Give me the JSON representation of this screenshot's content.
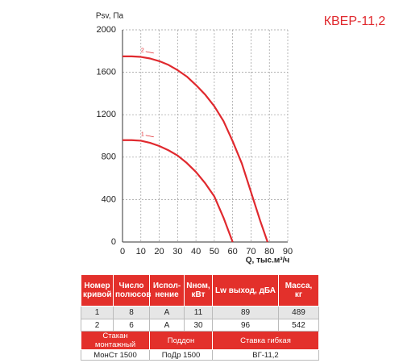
{
  "chart_data": {
    "type": "line",
    "title": "КВЕР-11,2",
    "y_label": "Psv, Па",
    "x_label": "Q, тыс.м³/ч",
    "x": [
      0,
      5,
      10,
      15,
      20,
      25,
      30,
      35,
      40,
      45,
      50,
      55,
      60,
      65,
      70,
      75,
      79
    ],
    "series": [
      {
        "name": "1",
        "color": "#e0292e",
        "values": [
          960,
          960,
          955,
          935,
          905,
          865,
          815,
          745,
          660,
          555,
          430,
          230,
          0,
          null,
          null,
          null,
          null
        ]
      },
      {
        "name": "2",
        "color": "#e0292e",
        "values": [
          1750,
          1750,
          1745,
          1730,
          1705,
          1670,
          1620,
          1560,
          1480,
          1390,
          1280,
          1140,
          950,
          740,
          470,
          200,
          0
        ]
      }
    ],
    "xlim": [
      0,
      90
    ],
    "xticks": [
      0,
      10,
      20,
      30,
      40,
      50,
      60,
      70,
      80,
      90
    ],
    "ylim": [
      0,
      2000
    ],
    "yticks": [
      0,
      400,
      800,
      1200,
      1600,
      2000
    ],
    "grid": true
  },
  "table": {
    "header": [
      "Номер кривой",
      "Число полюсов",
      "Испол-нение",
      "Nном, кВт",
      "Lw выход, дБА",
      "Масса, кг"
    ],
    "rows": [
      [
        "1",
        "8",
        "А",
        "11",
        "89",
        "489"
      ],
      [
        "2",
        "6",
        "А",
        "30",
        "96",
        "542"
      ]
    ],
    "accessories": {
      "header": [
        "Стакан монтажный",
        "Поддон",
        "Ставка гибкая"
      ],
      "values": [
        "МонСт 1500",
        "ПоДр 1500",
        "ВГ-11,2"
      ]
    }
  }
}
